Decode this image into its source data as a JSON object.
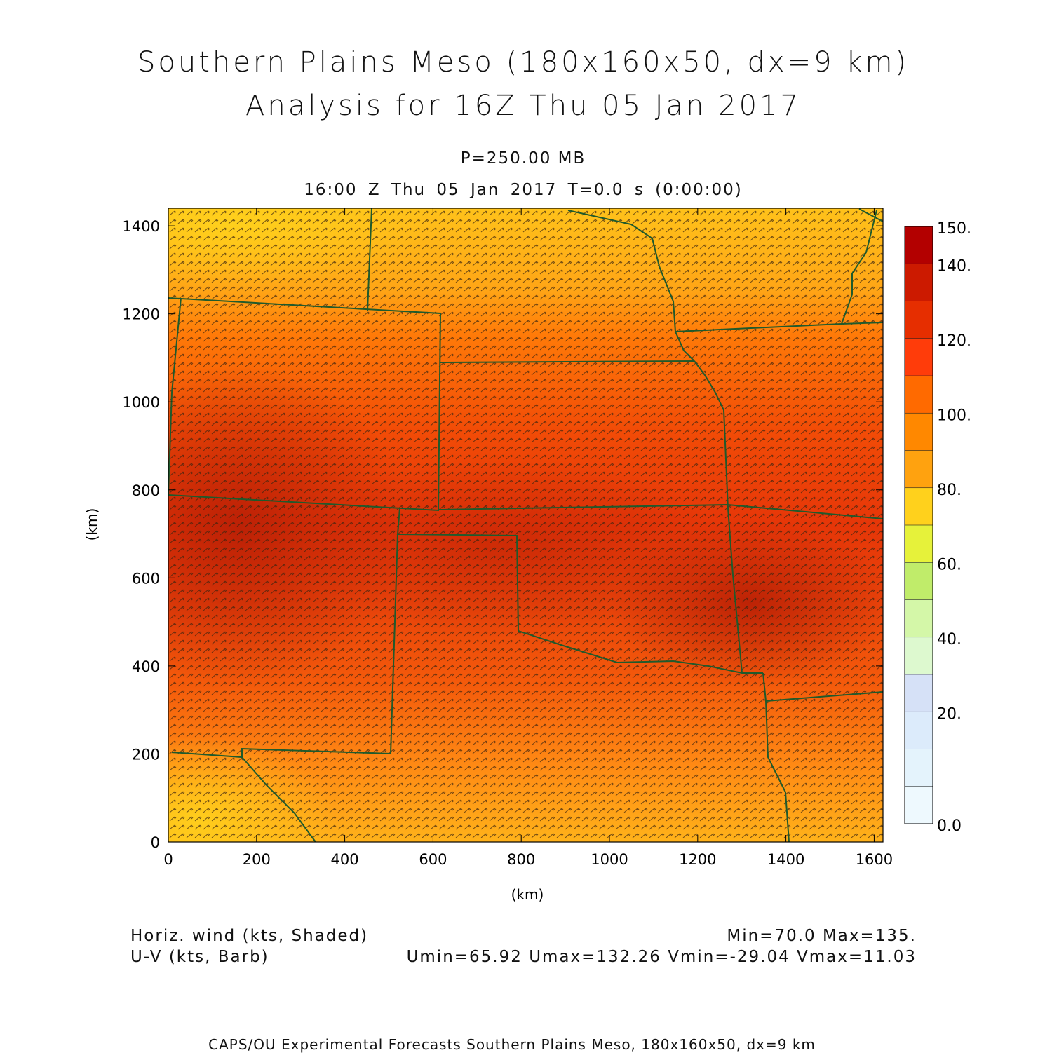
{
  "header": {
    "title_line1": "Southern Plains Meso (180x160x50, dx=9 km)",
    "title_line2": "Analysis for 16Z Thu 05 Jan 2017",
    "pressure_level": "P=250.00 MB",
    "valid_time": "16:00 Z Thu 05 Jan 2017    T=0.0 s (0:00:00)"
  },
  "map": {
    "x_axis": {
      "label": "(km)",
      "ticks": [
        "0",
        "200",
        "400",
        "600",
        "800",
        "1000",
        "1200",
        "1400",
        "1600"
      ],
      "range": [
        0,
        1620
      ]
    },
    "y_axis": {
      "label": "(km)",
      "ticks": [
        "0",
        "200",
        "400",
        "600",
        "800",
        "1000",
        "1200",
        "1400"
      ],
      "range": [
        0,
        1440
      ]
    },
    "field": "wind speed shading with wind barbs and state boundaries",
    "colorbar": {
      "labels": [
        "150.",
        "140.",
        "120.",
        "100.",
        "80.",
        "60.",
        "40.",
        "20.",
        "0.0"
      ],
      "colors": [
        "#b30000",
        "#cc1a00",
        "#e62e00",
        "#ff3c0a",
        "#ff6a00",
        "#ff8800",
        "#ffa20f",
        "#ffd11c",
        "#e6f23a",
        "#c0ec6a",
        "#d4f7a8",
        "#ddf9cf",
        "#d6e1f7",
        "#dcebfb",
        "#e4f3fc",
        "#eef9fe"
      ]
    }
  },
  "info": {
    "left_line1": "Horiz. wind (kts, Shaded)",
    "left_line2": "U-V (kts, Barb)",
    "right_line1": "Min=70.0 Max=135.",
    "right_line2": "Umin=65.92 Umax=132.26 Vmin=-29.04 Vmax=11.03"
  },
  "footer": "CAPS/OU Experimental Forecasts  Southern Plains Meso, 180x160x50, dx=9 km"
}
